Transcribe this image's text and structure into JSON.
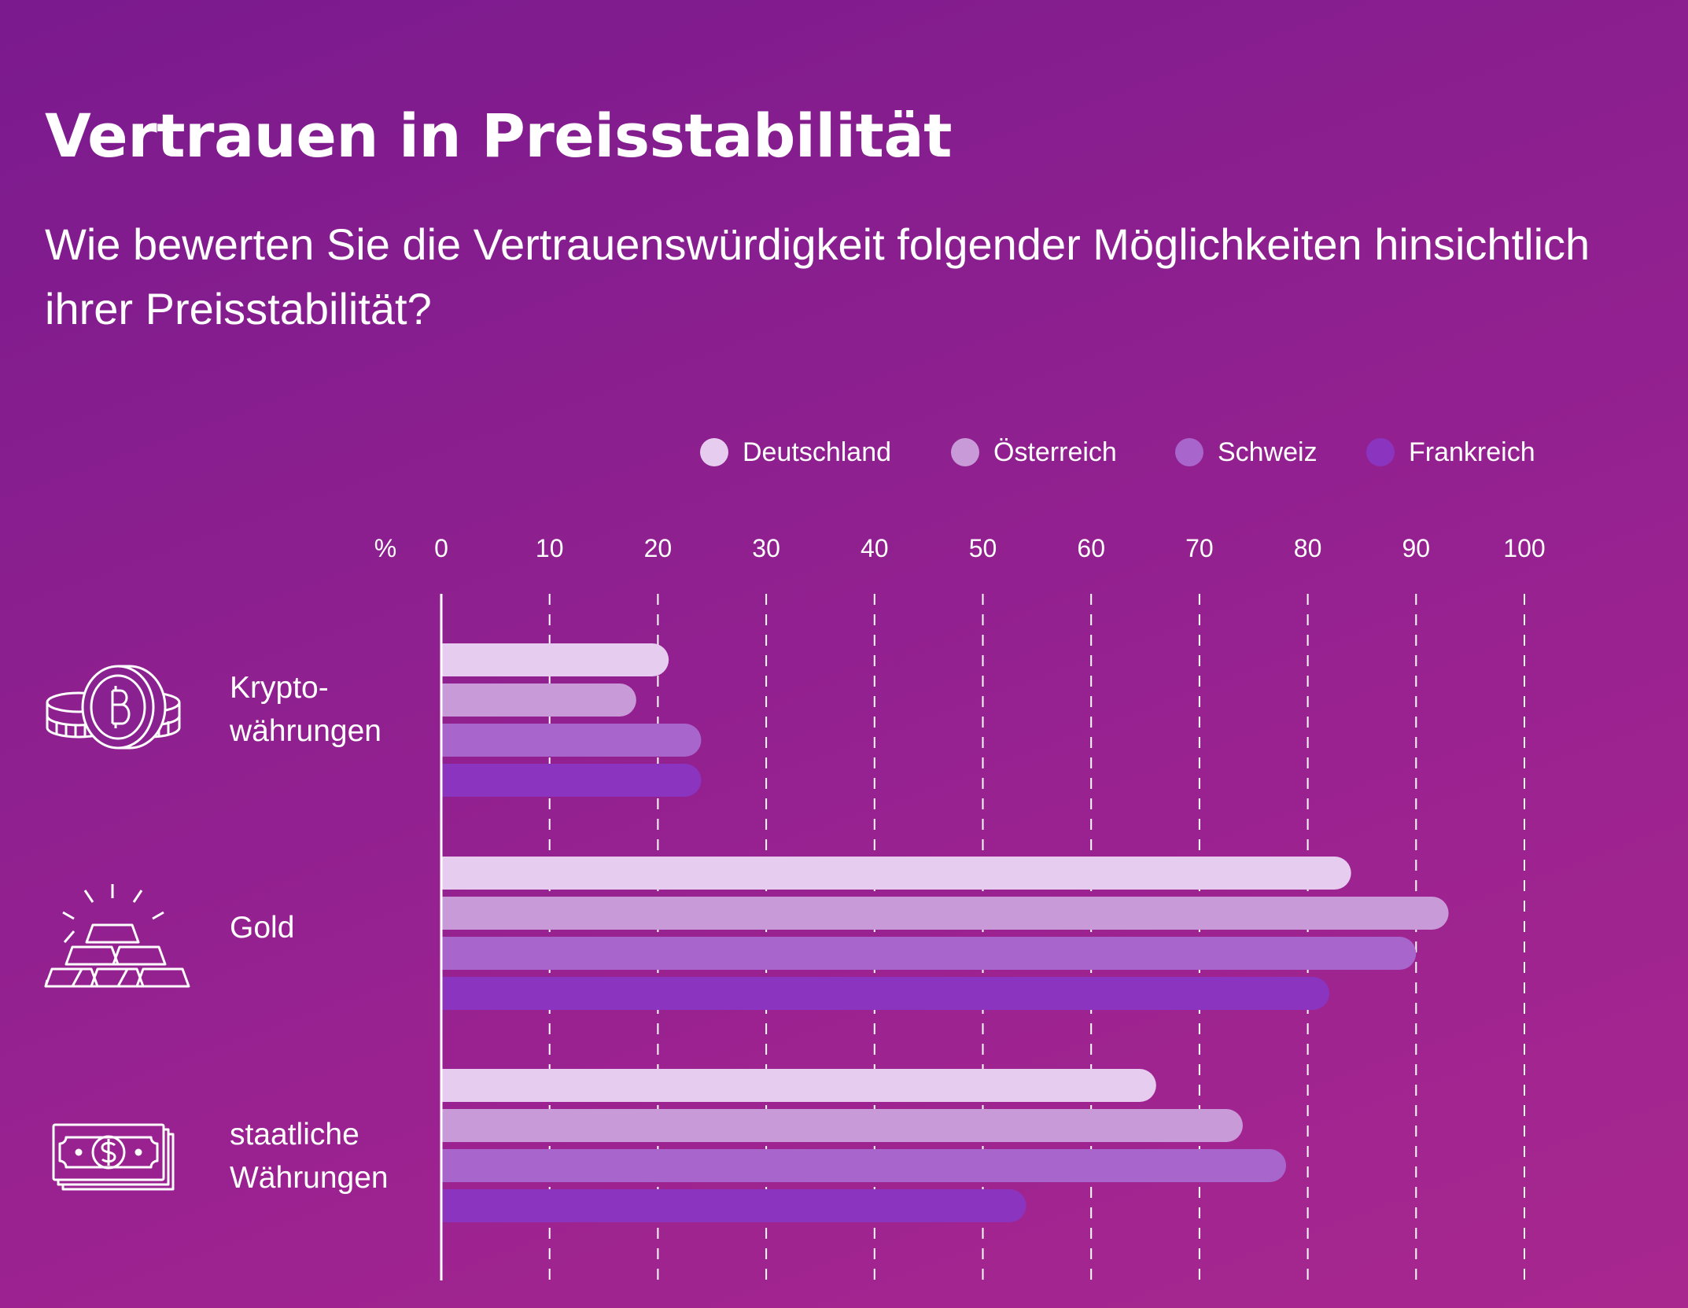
{
  "title": "Vertrauen in Preisstabilität",
  "subtitle": "Wie bewerten Sie die Vertrauenswürdigkeit folgender Möglichkeiten hinsichtlich ihrer Preisstabilität?",
  "colors": {
    "background_top": "#7a1a8e",
    "background_bottom": "#a8278f",
    "Deutschland": "#e6cdef",
    "Österreich": "#c89ad8",
    "Schweiz": "#a865cc",
    "Frankreich": "#8a34bf"
  },
  "chart_data": {
    "type": "bar",
    "orientation": "horizontal",
    "unit_label": "%",
    "xlim": [
      0,
      100
    ],
    "ticks": [
      "0",
      "10",
      "20",
      "30",
      "40",
      "50",
      "60",
      "70",
      "80",
      "90",
      "100"
    ],
    "grid": "vertical dashed",
    "legend_position": "top-right",
    "categories": [
      {
        "label_lines": [
          "Krypto-",
          "währungen"
        ],
        "icon": "bitcoin-coins-icon"
      },
      {
        "label_lines": [
          "Gold"
        ],
        "icon": "gold-bars-icon"
      },
      {
        "label_lines": [
          "staatliche",
          "Währungen"
        ],
        "icon": "banknote-icon"
      }
    ],
    "series": [
      {
        "name": "Deutschland",
        "color": "#e6cdef",
        "values": [
          21,
          84,
          66
        ]
      },
      {
        "name": "Österreich",
        "color": "#c89ad8",
        "values": [
          18,
          93,
          74
        ]
      },
      {
        "name": "Schweiz",
        "color": "#a865cc",
        "values": [
          24,
          90,
          78
        ]
      },
      {
        "name": "Frankreich",
        "color": "#8a34bf",
        "values": [
          24,
          82,
          54
        ]
      }
    ]
  }
}
